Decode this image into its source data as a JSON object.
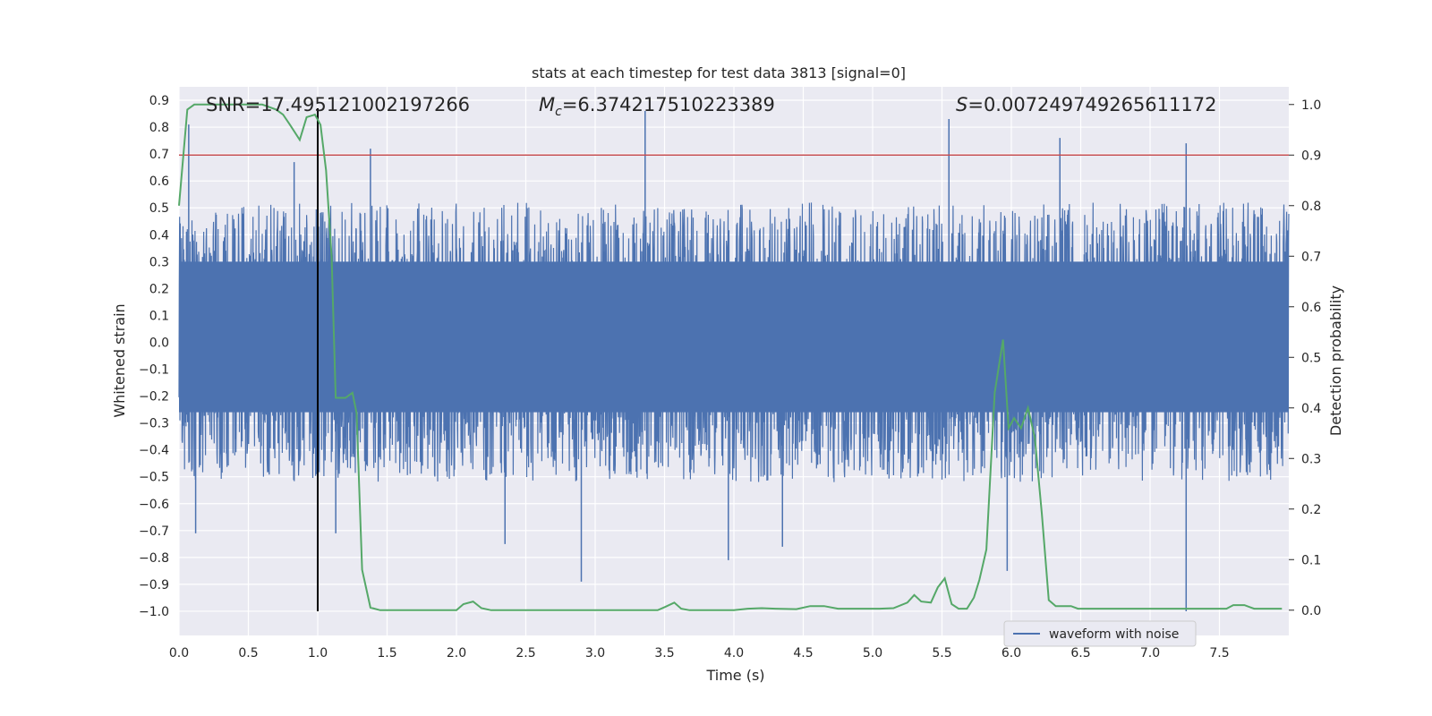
{
  "chart_data": {
    "type": "line",
    "title": "stats at each timestep for test data 3813 [signal=0]",
    "xlabel": "Time (s)",
    "ylabel_left": "Whitened strain",
    "ylabel_right": "Detection probability",
    "xlim": [
      0.0,
      8.0
    ],
    "ylim_left": [
      -1.09,
      0.95
    ],
    "ylim_right": [
      -0.05,
      1.035
    ],
    "x_ticks": [
      "0.0",
      "0.5",
      "1.0",
      "1.5",
      "2.0",
      "2.5",
      "3.0",
      "3.5",
      "4.0",
      "4.5",
      "5.0",
      "5.5",
      "6.0",
      "6.5",
      "7.0",
      "7.5"
    ],
    "y_left_ticks": [
      "0.9",
      "0.8",
      "0.7",
      "0.6",
      "0.5",
      "0.4",
      "0.3",
      "0.2",
      "0.1",
      "0.0",
      "−0.1",
      "−0.2",
      "−0.3",
      "−0.4",
      "−0.5",
      "−0.6",
      "−0.7",
      "−0.8",
      "−0.9",
      "−1.0"
    ],
    "y_right_ticks": [
      "1.0",
      "0.9",
      "0.8",
      "0.7",
      "0.6",
      "0.5",
      "0.4",
      "0.3",
      "0.2",
      "0.1",
      "0.0"
    ],
    "grid": true,
    "annotations": {
      "snr_label": "SNR",
      "snr_value": "=17.495121002197266",
      "mc_symbol": "M",
      "mc_subscript": "c",
      "mc_value": "=6.374217510223389",
      "s_symbol": "S",
      "s_value": "=0.007249749265611172"
    },
    "vertical_marker_time": 1.0,
    "threshold_probability": 0.9,
    "series": [
      {
        "name": "waveform with noise",
        "axis": "left",
        "color": "#4c72b0",
        "description": "whitened noisy strain, dense oscillation mostly between -0.5 and 0.5",
        "peak_spikes": [
          {
            "t": 0.07,
            "v": 0.81
          },
          {
            "t": 0.12,
            "v": -0.71
          },
          {
            "t": 0.83,
            "v": 0.67
          },
          {
            "t": 1.13,
            "v": -0.71
          },
          {
            "t": 1.38,
            "v": 0.72
          },
          {
            "t": 2.35,
            "v": -0.75
          },
          {
            "t": 2.9,
            "v": -0.89
          },
          {
            "t": 3.36,
            "v": 0.86
          },
          {
            "t": 3.96,
            "v": -0.81
          },
          {
            "t": 4.35,
            "v": -0.76
          },
          {
            "t": 5.55,
            "v": 0.83
          },
          {
            "t": 5.97,
            "v": -0.85
          },
          {
            "t": 6.35,
            "v": 0.76
          },
          {
            "t": 7.26,
            "v": 0.74
          },
          {
            "t": 7.26,
            "v": -1.0
          }
        ]
      },
      {
        "name": "detection probability",
        "axis": "right",
        "color": "#55a868",
        "x": [
          0.0,
          0.06,
          0.11,
          0.2,
          0.3,
          0.4,
          0.5,
          0.6,
          0.7,
          0.75,
          0.8,
          0.87,
          0.92,
          0.98,
          1.02,
          1.06,
          1.1,
          1.13,
          1.2,
          1.25,
          1.28,
          1.32,
          1.38,
          1.45,
          1.55,
          1.65,
          1.75,
          1.85,
          1.95,
          2.0,
          2.05,
          2.12,
          2.18,
          2.25,
          2.4,
          2.6,
          2.8,
          3.0,
          3.2,
          3.45,
          3.5,
          3.57,
          3.62,
          3.68,
          3.8,
          4.0,
          4.1,
          4.2,
          4.3,
          4.45,
          4.55,
          4.65,
          4.75,
          4.85,
          4.95,
          5.05,
          5.15,
          5.25,
          5.3,
          5.35,
          5.42,
          5.47,
          5.52,
          5.57,
          5.62,
          5.68,
          5.73,
          5.77,
          5.82,
          5.88,
          5.94,
          5.98,
          6.02,
          6.07,
          6.12,
          6.17,
          6.22,
          6.27,
          6.32,
          6.37,
          6.43,
          6.48,
          6.55,
          6.65,
          6.8,
          7.0,
          7.2,
          7.4,
          7.55,
          7.6,
          7.68,
          7.75,
          7.85,
          7.95
        ],
        "values": [
          0.8,
          0.99,
          1.0,
          1.0,
          1.0,
          1.0,
          1.0,
          1.0,
          0.99,
          0.98,
          0.96,
          0.93,
          0.975,
          0.98,
          0.96,
          0.87,
          0.7,
          0.42,
          0.42,
          0.43,
          0.39,
          0.08,
          0.005,
          0.0,
          0.0,
          0.0,
          0.0,
          0.0,
          0.0,
          0.0,
          0.012,
          0.017,
          0.004,
          0.0,
          0.0,
          0.0,
          0.0,
          0.0,
          0.0,
          0.0,
          0.006,
          0.015,
          0.003,
          0.0,
          0.0,
          0.0,
          0.003,
          0.004,
          0.003,
          0.002,
          0.008,
          0.008,
          0.003,
          0.003,
          0.003,
          0.003,
          0.004,
          0.015,
          0.03,
          0.017,
          0.015,
          0.045,
          0.063,
          0.012,
          0.003,
          0.003,
          0.025,
          0.06,
          0.12,
          0.43,
          0.535,
          0.36,
          0.38,
          0.36,
          0.4,
          0.34,
          0.19,
          0.02,
          0.008,
          0.008,
          0.008,
          0.003,
          0.003,
          0.003,
          0.003,
          0.003,
          0.003,
          0.003,
          0.003,
          0.01,
          0.01,
          0.003,
          0.003,
          0.003
        ]
      }
    ],
    "legend": {
      "position": "lower-right",
      "entries": [
        "waveform with noise"
      ]
    }
  }
}
